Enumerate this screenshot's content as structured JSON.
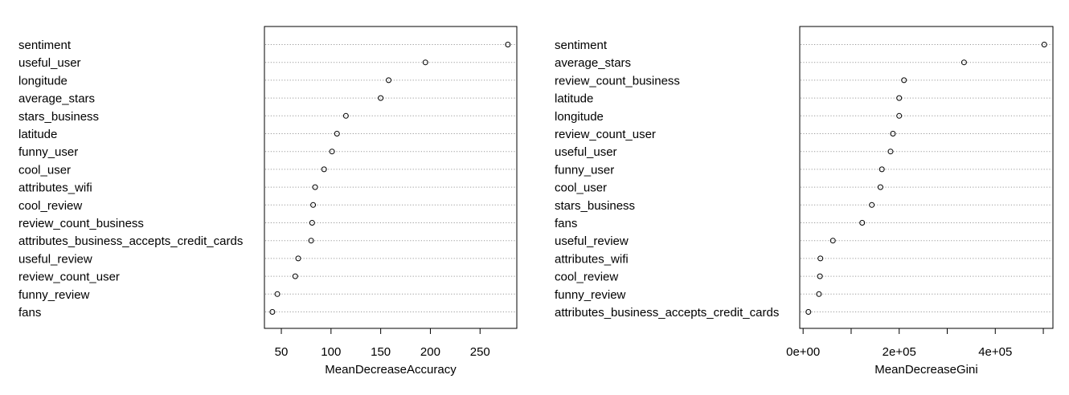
{
  "chart_data": [
    {
      "type": "dotchart",
      "xlabel": "MeanDecreaseAccuracy",
      "xlim": [
        33,
        287
      ],
      "xticks": [
        50,
        100,
        150,
        200,
        250
      ],
      "xtick_labels": [
        "50",
        "100",
        "150",
        "200",
        "250"
      ],
      "grid": "dotted horizontal lines",
      "colors": {
        "points": "#000000",
        "grid": "#9a9a9a",
        "frame": "#000000"
      },
      "categories": [
        "sentiment",
        "useful_user",
        "longitude",
        "average_stars",
        "stars_business",
        "latitude",
        "funny_user",
        "cool_user",
        "attributes_wifi",
        "cool_review",
        "review_count_business",
        "attributes_business_accepts_credit_cards",
        "useful_review",
        "review_count_user",
        "funny_review",
        "fans"
      ],
      "values": [
        278,
        195,
        158,
        150,
        115,
        106,
        101,
        93,
        84,
        82,
        81,
        80,
        67,
        64,
        46,
        41
      ]
    },
    {
      "type": "dotchart",
      "xlabel": "MeanDecreaseGini",
      "xlim": [
        -7000,
        520000
      ],
      "xticks": [
        0,
        100000,
        200000,
        300000,
        400000,
        500000
      ],
      "xtick_labels": [
        "0e+00",
        "",
        "2e+05",
        "",
        "4e+05",
        ""
      ],
      "grid": "dotted horizontal lines",
      "colors": {
        "points": "#000000",
        "grid": "#9a9a9a",
        "frame": "#000000"
      },
      "categories": [
        "sentiment",
        "average_stars",
        "review_count_business",
        "latitude",
        "longitude",
        "review_count_user",
        "useful_user",
        "funny_user",
        "cool_user",
        "stars_business",
        "fans",
        "useful_review",
        "attributes_wifi",
        "cool_review",
        "funny_review",
        "attributes_business_accepts_credit_cards"
      ],
      "values": [
        502000,
        335000,
        210000,
        200000,
        200000,
        187000,
        182000,
        164000,
        161000,
        143000,
        123000,
        62000,
        36000,
        35000,
        33000,
        11000
      ]
    }
  ]
}
